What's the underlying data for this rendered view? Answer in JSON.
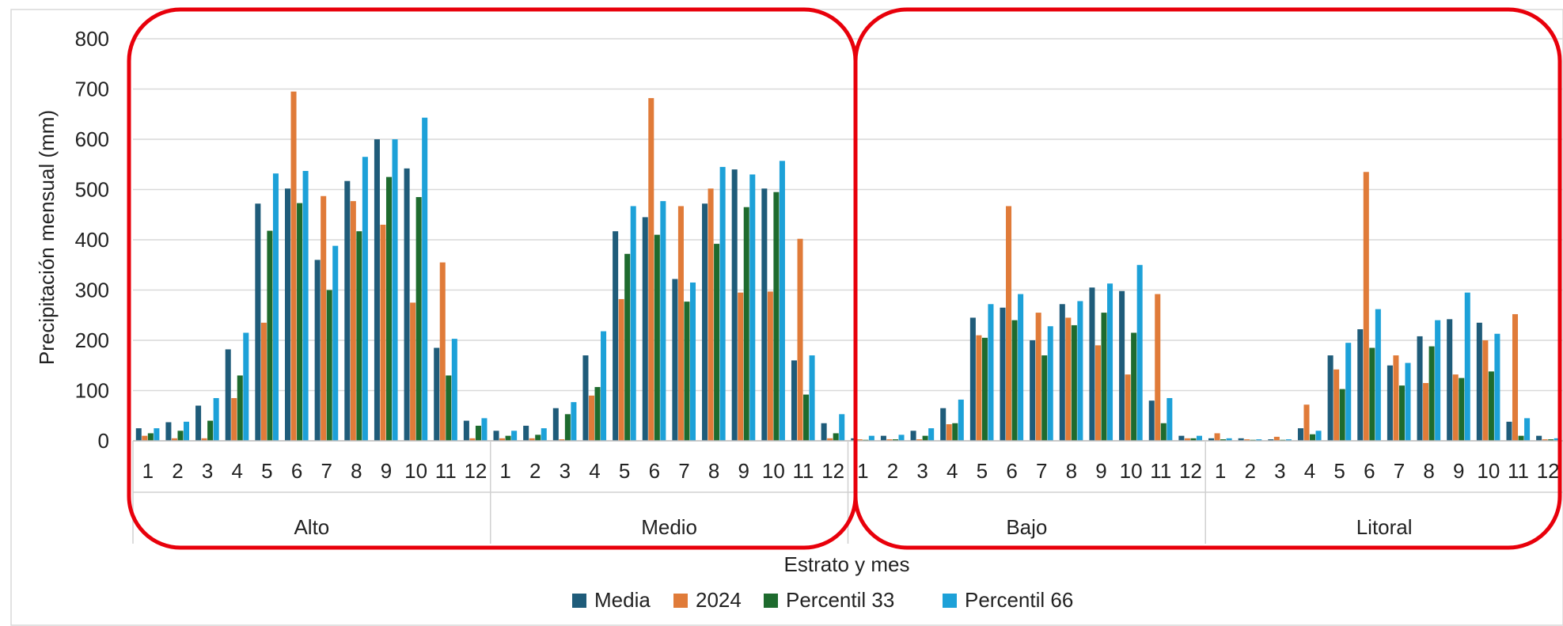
{
  "chart_data": {
    "type": "bar",
    "xlabel": "Estrato y mes",
    "ylabel": "Precipitación mensual (mm)",
    "ylim": [
      0,
      800
    ],
    "yticks": [
      0,
      100,
      200,
      300,
      400,
      500,
      600,
      700,
      800
    ],
    "grid": true,
    "legend_position": "bottom",
    "groups": [
      "Alto",
      "Medio",
      "Bajo",
      "Litoral"
    ],
    "months": [
      "1",
      "2",
      "3",
      "4",
      "5",
      "6",
      "7",
      "8",
      "9",
      "10",
      "11",
      "12"
    ],
    "highlight_groups": [
      [
        "Alto",
        "Medio"
      ],
      [
        "Bajo",
        "Litoral"
      ]
    ],
    "highlight_color": "#e8000b",
    "series": [
      {
        "name": "Media",
        "color": "#1f5c7a",
        "values": {
          "Alto": [
            25,
            37,
            70,
            182,
            472,
            502,
            360,
            517,
            600,
            542,
            185,
            40
          ],
          "Medio": [
            20,
            30,
            65,
            170,
            417,
            445,
            322,
            472,
            540,
            502,
            160,
            35
          ],
          "Bajo": [
            5,
            10,
            20,
            65,
            245,
            265,
            200,
            272,
            305,
            298,
            80,
            10
          ],
          "Litoral": [
            5,
            5,
            3,
            25,
            170,
            222,
            150,
            208,
            242,
            235,
            38,
            10
          ]
        }
      },
      {
        "name": "2024",
        "color": "#e07b39",
        "values": {
          "Alto": [
            10,
            5,
            5,
            85,
            235,
            695,
            487,
            477,
            430,
            275,
            355,
            5
          ],
          "Medio": [
            5,
            5,
            3,
            90,
            282,
            682,
            467,
            502,
            295,
            297,
            402,
            5
          ],
          "Bajo": [
            3,
            3,
            3,
            33,
            210,
            467,
            255,
            245,
            190,
            132,
            292,
            5
          ],
          "Litoral": [
            15,
            3,
            8,
            72,
            142,
            535,
            170,
            115,
            132,
            200,
            252,
            3
          ]
        }
      },
      {
        "name": "Percentil 33",
        "color": "#1e6b2e",
        "values": {
          "Alto": [
            15,
            20,
            40,
            130,
            418,
            473,
            300,
            417,
            525,
            485,
            130,
            30
          ],
          "Medio": [
            10,
            12,
            53,
            107,
            372,
            410,
            277,
            392,
            465,
            495,
            92,
            15
          ],
          "Bajo": [
            2,
            3,
            10,
            35,
            205,
            240,
            170,
            230,
            255,
            215,
            35,
            5
          ],
          "Litoral": [
            3,
            2,
            2,
            13,
            103,
            185,
            110,
            188,
            125,
            138,
            10,
            3
          ]
        }
      },
      {
        "name": "Percentil 66",
        "color": "#1da1d8",
        "values": {
          "Alto": [
            25,
            38,
            85,
            215,
            532,
            537,
            388,
            565,
            600,
            643,
            203,
            45
          ],
          "Medio": [
            20,
            25,
            77,
            218,
            467,
            477,
            315,
            545,
            530,
            557,
            170,
            53
          ],
          "Bajo": [
            10,
            12,
            25,
            82,
            272,
            292,
            228,
            278,
            313,
            350,
            85,
            10
          ],
          "Litoral": [
            5,
            3,
            3,
            20,
            195,
            262,
            155,
            240,
            295,
            213,
            45,
            5
          ]
        }
      }
    ]
  }
}
